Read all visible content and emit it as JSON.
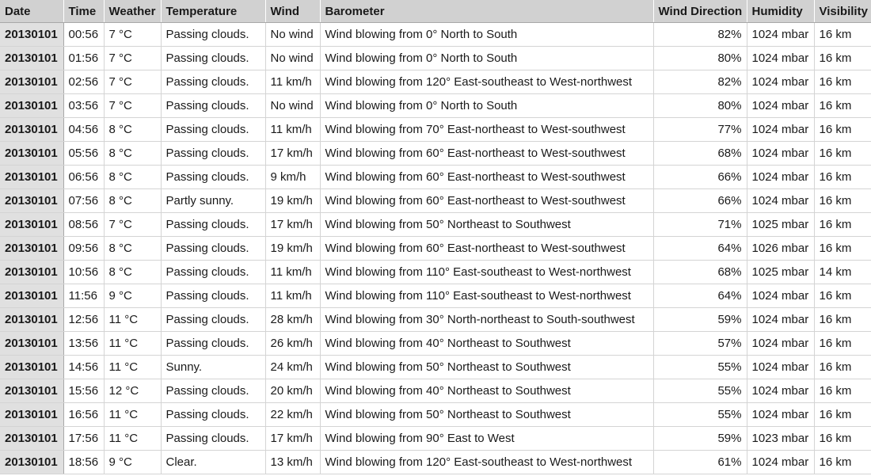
{
  "columns": [
    "Date",
    "Time",
    "Weather",
    "Temperature",
    "Wind",
    "Barometer",
    "Wind Direction",
    "Humidity",
    "Visibility"
  ],
  "rows": [
    [
      "20130101",
      "00:56",
      "7 °C",
      "Passing clouds.",
      "No wind",
      "Wind blowing from 0° North to South",
      "82%",
      "1024 mbar",
      "16 km"
    ],
    [
      "20130101",
      "01:56",
      "7 °C",
      "Passing clouds.",
      "No wind",
      "Wind blowing from 0° North to South",
      "80%",
      "1024 mbar",
      "16 km"
    ],
    [
      "20130101",
      "02:56",
      "7 °C",
      "Passing clouds.",
      "11 km/h",
      "Wind blowing from 120° East-southeast to West-northwest",
      "82%",
      "1024 mbar",
      "16 km"
    ],
    [
      "20130101",
      "03:56",
      "7 °C",
      "Passing clouds.",
      "No wind",
      "Wind blowing from 0° North to South",
      "80%",
      "1024 mbar",
      "16 km"
    ],
    [
      "20130101",
      "04:56",
      "8 °C",
      "Passing clouds.",
      "11 km/h",
      "Wind blowing from 70° East-northeast to West-southwest",
      "77%",
      "1024 mbar",
      "16 km"
    ],
    [
      "20130101",
      "05:56",
      "8 °C",
      "Passing clouds.",
      "17 km/h",
      "Wind blowing from 60° East-northeast to West-southwest",
      "68%",
      "1024 mbar",
      "16 km"
    ],
    [
      "20130101",
      "06:56",
      "8 °C",
      "Passing clouds.",
      "9 km/h",
      "Wind blowing from 60° East-northeast to West-southwest",
      "66%",
      "1024 mbar",
      "16 km"
    ],
    [
      "20130101",
      "07:56",
      "8 °C",
      "Partly sunny.",
      "19 km/h",
      "Wind blowing from 60° East-northeast to West-southwest",
      "66%",
      "1024 mbar",
      "16 km"
    ],
    [
      "20130101",
      "08:56",
      "7 °C",
      "Passing clouds.",
      "17 km/h",
      "Wind blowing from 50° Northeast to Southwest",
      "71%",
      "1025 mbar",
      "16 km"
    ],
    [
      "20130101",
      "09:56",
      "8 °C",
      "Passing clouds.",
      "19 km/h",
      "Wind blowing from 60° East-northeast to West-southwest",
      "64%",
      "1026 mbar",
      "16 km"
    ],
    [
      "20130101",
      "10:56",
      "8 °C",
      "Passing clouds.",
      "11 km/h",
      "Wind blowing from 110° East-southeast to West-northwest",
      "68%",
      "1025 mbar",
      "14 km"
    ],
    [
      "20130101",
      "11:56",
      "9 °C",
      "Passing clouds.",
      "11 km/h",
      "Wind blowing from 110° East-southeast to West-northwest",
      "64%",
      "1024 mbar",
      "16 km"
    ],
    [
      "20130101",
      "12:56",
      "11 °C",
      "Passing clouds.",
      "28 km/h",
      "Wind blowing from 30° North-northeast to South-southwest",
      "59%",
      "1024 mbar",
      "16 km"
    ],
    [
      "20130101",
      "13:56",
      "11 °C",
      "Passing clouds.",
      "26 km/h",
      "Wind blowing from 40° Northeast to Southwest",
      "57%",
      "1024 mbar",
      "16 km"
    ],
    [
      "20130101",
      "14:56",
      "11 °C",
      "Sunny.",
      "24 km/h",
      "Wind blowing from 50° Northeast to Southwest",
      "55%",
      "1024 mbar",
      "16 km"
    ],
    [
      "20130101",
      "15:56",
      "12 °C",
      "Passing clouds.",
      "20 km/h",
      "Wind blowing from 40° Northeast to Southwest",
      "55%",
      "1024 mbar",
      "16 km"
    ],
    [
      "20130101",
      "16:56",
      "11 °C",
      "Passing clouds.",
      "22 km/h",
      "Wind blowing from 50° Northeast to Southwest",
      "55%",
      "1024 mbar",
      "16 km"
    ],
    [
      "20130101",
      "17:56",
      "11 °C",
      "Passing clouds.",
      "17 km/h",
      "Wind blowing from 90° East to West",
      "59%",
      "1023 mbar",
      "16 km"
    ],
    [
      "20130101",
      "18:56",
      "9 °C",
      "Clear.",
      "13 km/h",
      "Wind blowing from 120° East-southeast to West-northwest",
      "61%",
      "1024 mbar",
      "16 km"
    ]
  ]
}
